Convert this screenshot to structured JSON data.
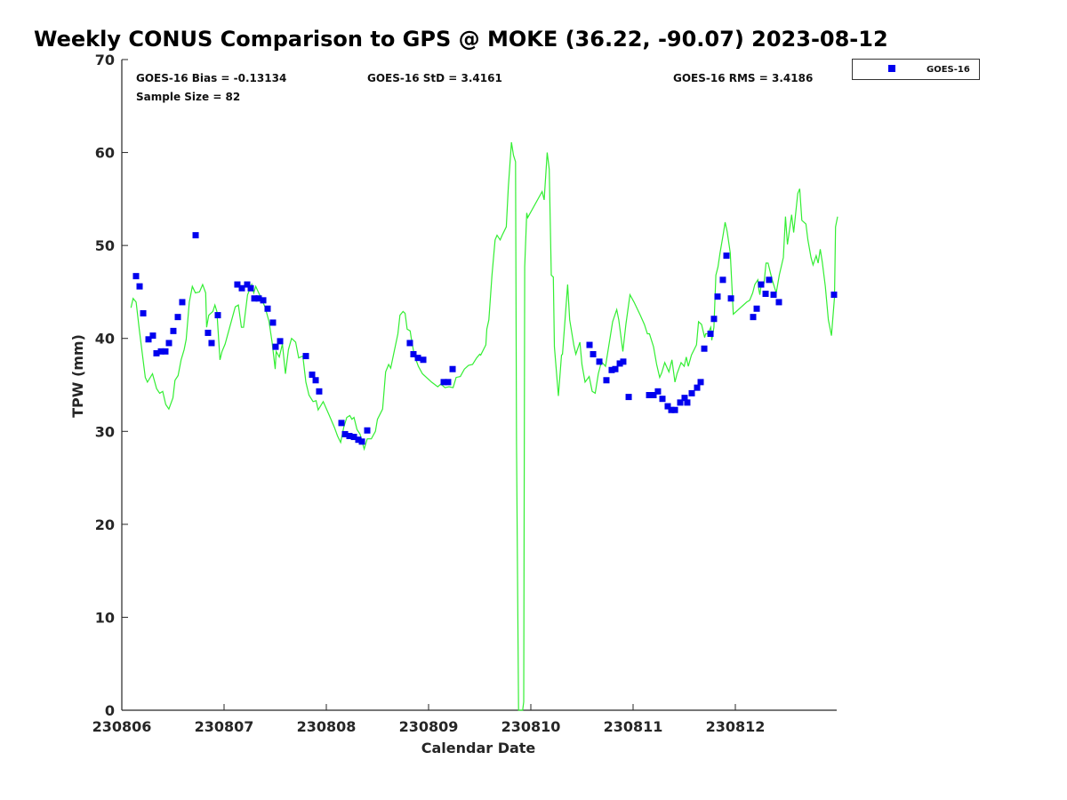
{
  "chart_data": {
    "type": "scatter",
    "title": "Weekly CONUS Comparison to GPS @ MOKE (36.22, -90.07) 2023-08-12",
    "xlabel": "Calendar Date",
    "ylabel": "TPW (mm)",
    "x_units": "days since 230806",
    "xlim": [
      0,
      7
    ],
    "ylim": [
      0,
      70
    ],
    "xticks": [
      0,
      1,
      2,
      3,
      4,
      5,
      6
    ],
    "xtick_labels": [
      "230806",
      "230807",
      "230808",
      "230809",
      "230810",
      "230811",
      "230812"
    ],
    "yticks": [
      0,
      10,
      20,
      30,
      40,
      50,
      60,
      70
    ],
    "ytick_labels": [
      "0",
      "10",
      "20",
      "30",
      "40",
      "50",
      "60",
      "70"
    ],
    "grid": false,
    "legend": {
      "position": "outside-top-right",
      "entries": [
        "GOES-16"
      ]
    },
    "stats": {
      "bias": "GOES-16 Bias = -0.13134",
      "std": "GOES-16 StD = 3.4161",
      "rms": "GOES-16 RMS = 3.4186",
      "sample": "Sample Size = 82"
    },
    "colors": {
      "goes": "#0000ee",
      "gps": "#33ee33"
    },
    "series": [
      {
        "name": "GPS",
        "style": "line",
        "points": [
          [
            0.09,
            43.3
          ],
          [
            0.11,
            44.3
          ],
          [
            0.14,
            43.9
          ],
          [
            0.17,
            41.0
          ],
          [
            0.23,
            35.8
          ],
          [
            0.25,
            35.3
          ],
          [
            0.3,
            36.2
          ],
          [
            0.34,
            34.6
          ],
          [
            0.37,
            34.1
          ],
          [
            0.4,
            34.3
          ],
          [
            0.43,
            32.9
          ],
          [
            0.46,
            32.4
          ],
          [
            0.5,
            33.6
          ],
          [
            0.52,
            35.5
          ],
          [
            0.55,
            36.0
          ],
          [
            0.58,
            37.7
          ],
          [
            0.61,
            38.8
          ],
          [
            0.63,
            39.9
          ],
          [
            0.66,
            43.9
          ],
          [
            0.69,
            45.6
          ],
          [
            0.72,
            44.9
          ],
          [
            0.76,
            45.0
          ],
          [
            0.79,
            45.8
          ],
          [
            0.82,
            44.9
          ],
          [
            0.83,
            41.2
          ],
          [
            0.85,
            42.5
          ],
          [
            0.89,
            42.9
          ],
          [
            0.91,
            43.6
          ],
          [
            0.93,
            42.9
          ],
          [
            0.96,
            37.7
          ],
          [
            0.98,
            38.6
          ],
          [
            1.01,
            39.4
          ],
          [
            1.11,
            43.4
          ],
          [
            1.14,
            43.6
          ],
          [
            1.17,
            41.2
          ],
          [
            1.19,
            41.2
          ],
          [
            1.23,
            44.7
          ],
          [
            1.27,
            45.8
          ],
          [
            1.29,
            44.9
          ],
          [
            1.31,
            45.6
          ],
          [
            1.36,
            44.4
          ],
          [
            1.4,
            43.4
          ],
          [
            1.44,
            41.8
          ],
          [
            1.47,
            39.6
          ],
          [
            1.5,
            36.7
          ],
          [
            1.51,
            38.6
          ],
          [
            1.54,
            38.0
          ],
          [
            1.57,
            39.4
          ],
          [
            1.6,
            36.2
          ],
          [
            1.63,
            38.8
          ],
          [
            1.66,
            40.0
          ],
          [
            1.7,
            39.6
          ],
          [
            1.73,
            37.9
          ],
          [
            1.77,
            38.1
          ],
          [
            1.8,
            35.3
          ],
          [
            1.83,
            33.9
          ],
          [
            1.87,
            33.2
          ],
          [
            1.9,
            33.3
          ],
          [
            1.92,
            32.3
          ],
          [
            1.97,
            33.2
          ],
          [
            2.03,
            31.7
          ],
          [
            2.08,
            30.4
          ],
          [
            2.11,
            29.5
          ],
          [
            2.14,
            28.8
          ],
          [
            2.17,
            30.4
          ],
          [
            2.2,
            31.5
          ],
          [
            2.23,
            31.7
          ],
          [
            2.25,
            31.3
          ],
          [
            2.27,
            31.5
          ],
          [
            2.3,
            30.2
          ],
          [
            2.33,
            29.7
          ],
          [
            2.37,
            28.1
          ],
          [
            2.4,
            29.2
          ],
          [
            2.44,
            29.2
          ],
          [
            2.48,
            30.0
          ],
          [
            2.5,
            31.3
          ],
          [
            2.55,
            32.4
          ],
          [
            2.58,
            36.4
          ],
          [
            2.61,
            37.2
          ],
          [
            2.63,
            36.8
          ],
          [
            2.66,
            38.4
          ],
          [
            2.7,
            40.5
          ],
          [
            2.72,
            42.5
          ],
          [
            2.75,
            42.9
          ],
          [
            2.77,
            42.7
          ],
          [
            2.79,
            41.0
          ],
          [
            2.82,
            40.8
          ],
          [
            2.83,
            40.1
          ],
          [
            2.86,
            38.2
          ],
          [
            2.9,
            37.0
          ],
          [
            2.94,
            36.2
          ],
          [
            3.03,
            35.3
          ],
          [
            3.09,
            34.8
          ],
          [
            3.12,
            35.1
          ],
          [
            3.16,
            34.7
          ],
          [
            3.2,
            34.8
          ],
          [
            3.24,
            34.7
          ],
          [
            3.27,
            35.8
          ],
          [
            3.31,
            35.9
          ],
          [
            3.35,
            36.7
          ],
          [
            3.39,
            37.1
          ],
          [
            3.43,
            37.2
          ],
          [
            3.47,
            37.9
          ],
          [
            3.5,
            38.3
          ],
          [
            3.51,
            38.2
          ],
          [
            3.56,
            39.3
          ],
          [
            3.57,
            41.0
          ],
          [
            3.59,
            42.0
          ],
          [
            3.62,
            46.8
          ],
          [
            3.65,
            50.6
          ],
          [
            3.67,
            51.1
          ],
          [
            3.7,
            50.6
          ],
          [
            3.72,
            51.1
          ],
          [
            3.76,
            52.0
          ],
          [
            3.78,
            56.3
          ],
          [
            3.81,
            61.1
          ],
          [
            3.83,
            59.7
          ],
          [
            3.85,
            59.0
          ],
          [
            3.86,
            28.6
          ],
          [
            3.88,
            0
          ],
          [
            3.92,
            0
          ],
          [
            3.93,
            0.9
          ],
          [
            3.94,
            47.7
          ],
          [
            3.96,
            53.5
          ],
          [
            3.97,
            53.0
          ],
          [
            4.11,
            55.8
          ],
          [
            4.13,
            54.9
          ],
          [
            4.16,
            60.0
          ],
          [
            4.18,
            58.2
          ],
          [
            4.2,
            46.8
          ],
          [
            4.22,
            46.6
          ],
          [
            4.23,
            39.1
          ],
          [
            4.27,
            33.8
          ],
          [
            4.3,
            38.2
          ],
          [
            4.31,
            38.3
          ],
          [
            4.36,
            45.8
          ],
          [
            4.38,
            42.0
          ],
          [
            4.42,
            39.3
          ],
          [
            4.44,
            38.3
          ],
          [
            4.48,
            39.6
          ],
          [
            4.5,
            37.2
          ],
          [
            4.53,
            35.3
          ],
          [
            4.57,
            35.9
          ],
          [
            4.6,
            34.3
          ],
          [
            4.63,
            34.1
          ],
          [
            4.66,
            36.2
          ],
          [
            4.69,
            37.5
          ],
          [
            4.73,
            37.0
          ],
          [
            4.8,
            41.8
          ],
          [
            4.84,
            43.1
          ],
          [
            4.86,
            42.0
          ],
          [
            4.9,
            38.6
          ],
          [
            4.93,
            41.5
          ],
          [
            4.97,
            44.7
          ],
          [
            5.01,
            43.9
          ],
          [
            5.07,
            42.5
          ],
          [
            5.11,
            41.5
          ],
          [
            5.14,
            40.5
          ],
          [
            5.16,
            40.5
          ],
          [
            5.2,
            39.1
          ],
          [
            5.23,
            37.2
          ],
          [
            5.26,
            35.8
          ],
          [
            5.28,
            36.3
          ],
          [
            5.31,
            37.4
          ],
          [
            5.35,
            36.4
          ],
          [
            5.38,
            37.7
          ],
          [
            5.41,
            35.3
          ],
          [
            5.43,
            36.2
          ],
          [
            5.47,
            37.4
          ],
          [
            5.5,
            37.0
          ],
          [
            5.52,
            38.0
          ],
          [
            5.54,
            37.0
          ],
          [
            5.57,
            38.2
          ],
          [
            5.62,
            39.3
          ],
          [
            5.64,
            41.8
          ],
          [
            5.67,
            41.5
          ],
          [
            5.7,
            40.1
          ],
          [
            5.71,
            40.5
          ],
          [
            5.73,
            40.5
          ],
          [
            5.76,
            41.2
          ],
          [
            5.77,
            39.8
          ],
          [
            5.79,
            41.2
          ],
          [
            5.81,
            46.8
          ],
          [
            5.83,
            47.7
          ],
          [
            5.85,
            49.2
          ],
          [
            5.88,
            51.1
          ],
          [
            5.9,
            52.5
          ],
          [
            5.92,
            51.5
          ],
          [
            5.95,
            49.2
          ],
          [
            5.98,
            42.6
          ],
          [
            6.11,
            43.9
          ],
          [
            6.14,
            44.1
          ],
          [
            6.17,
            44.9
          ],
          [
            6.19,
            45.8
          ],
          [
            6.22,
            46.3
          ],
          [
            6.23,
            45.2
          ],
          [
            6.24,
            44.7
          ],
          [
            6.25,
            45.6
          ],
          [
            6.28,
            45.9
          ],
          [
            6.3,
            48.1
          ],
          [
            6.32,
            48.1
          ],
          [
            6.36,
            46.3
          ],
          [
            6.4,
            44.9
          ],
          [
            6.43,
            46.8
          ],
          [
            6.47,
            48.7
          ],
          [
            6.49,
            53.1
          ],
          [
            6.51,
            50.1
          ],
          [
            6.55,
            53.3
          ],
          [
            6.57,
            51.4
          ],
          [
            6.61,
            55.6
          ],
          [
            6.63,
            56.1
          ],
          [
            6.65,
            52.7
          ],
          [
            6.69,
            52.3
          ],
          [
            6.71,
            50.6
          ],
          [
            6.74,
            48.7
          ],
          [
            6.76,
            47.9
          ],
          [
            6.79,
            48.9
          ],
          [
            6.81,
            48.1
          ],
          [
            6.83,
            49.6
          ],
          [
            6.85,
            48.2
          ],
          [
            6.88,
            45.6
          ],
          [
            6.91,
            42.0
          ],
          [
            6.94,
            40.3
          ],
          [
            6.97,
            44.4
          ],
          [
            6.98,
            52.0
          ],
          [
            7.0,
            53.1
          ]
        ]
      },
      {
        "name": "GOES-16",
        "style": "square",
        "points": [
          [
            0.139,
            46.7
          ],
          [
            0.174,
            45.6
          ],
          [
            0.209,
            42.7
          ],
          [
            0.261,
            39.9
          ],
          [
            0.304,
            40.3
          ],
          [
            0.339,
            38.4
          ],
          [
            0.383,
            38.6
          ],
          [
            0.426,
            38.6
          ],
          [
            0.461,
            39.5
          ],
          [
            0.504,
            40.8
          ],
          [
            0.548,
            42.3
          ],
          [
            0.591,
            43.9
          ],
          [
            0.722,
            51.1
          ],
          [
            0.843,
            40.6
          ],
          [
            0.878,
            39.5
          ],
          [
            0.939,
            42.5
          ],
          [
            1.13,
            45.8
          ],
          [
            1.174,
            45.4
          ],
          [
            1.226,
            45.8
          ],
          [
            1.261,
            45.4
          ],
          [
            1.296,
            44.3
          ],
          [
            1.339,
            44.3
          ],
          [
            1.383,
            44.1
          ],
          [
            1.426,
            43.2
          ],
          [
            1.478,
            41.7
          ],
          [
            1.504,
            39.1
          ],
          [
            1.548,
            39.7
          ],
          [
            1.8,
            38.1
          ],
          [
            1.861,
            36.1
          ],
          [
            1.896,
            35.5
          ],
          [
            1.93,
            34.3
          ],
          [
            2.148,
            30.9
          ],
          [
            2.183,
            29.7
          ],
          [
            2.226,
            29.5
          ],
          [
            2.27,
            29.4
          ],
          [
            2.313,
            29.1
          ],
          [
            2.348,
            28.9
          ],
          [
            2.4,
            30.1
          ],
          [
            2.817,
            39.5
          ],
          [
            2.852,
            38.3
          ],
          [
            2.896,
            37.9
          ],
          [
            2.948,
            37.7
          ],
          [
            3.148,
            35.3
          ],
          [
            3.191,
            35.3
          ],
          [
            3.235,
            36.7
          ],
          [
            4.574,
            39.3
          ],
          [
            4.609,
            38.3
          ],
          [
            4.67,
            37.5
          ],
          [
            4.739,
            35.5
          ],
          [
            4.791,
            36.6
          ],
          [
            4.826,
            36.7
          ],
          [
            4.87,
            37.3
          ],
          [
            4.904,
            37.5
          ],
          [
            4.957,
            33.7
          ],
          [
            5.157,
            33.9
          ],
          [
            5.2,
            33.9
          ],
          [
            5.243,
            34.3
          ],
          [
            5.287,
            33.5
          ],
          [
            5.339,
            32.7
          ],
          [
            5.374,
            32.3
          ],
          [
            5.409,
            32.3
          ],
          [
            5.461,
            33.1
          ],
          [
            5.504,
            33.6
          ],
          [
            5.53,
            33.1
          ],
          [
            5.574,
            34.1
          ],
          [
            5.626,
            34.7
          ],
          [
            5.661,
            35.3
          ],
          [
            5.696,
            38.9
          ],
          [
            5.757,
            40.5
          ],
          [
            5.791,
            42.1
          ],
          [
            5.826,
            44.5
          ],
          [
            5.878,
            46.3
          ],
          [
            5.913,
            48.9
          ],
          [
            5.957,
            44.3
          ],
          [
            6.174,
            42.3
          ],
          [
            6.209,
            43.2
          ],
          [
            6.252,
            45.8
          ],
          [
            6.296,
            44.8
          ],
          [
            6.33,
            46.3
          ],
          [
            6.374,
            44.7
          ],
          [
            6.426,
            43.9
          ],
          [
            6.965,
            44.7
          ]
        ]
      }
    ]
  }
}
